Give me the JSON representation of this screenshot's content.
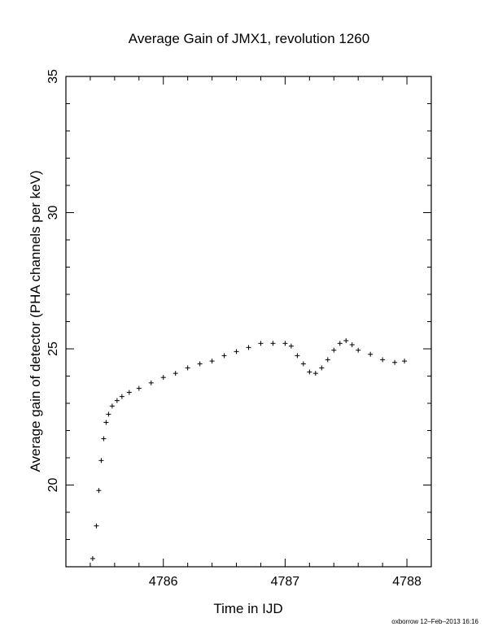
{
  "chart_data": {
    "type": "scatter",
    "title": "Average Gain of JMX1, revolution 1260",
    "xlabel": "Time in IJD",
    "ylabel": "Average gain of detector (PHA channels per keV)",
    "xlim": [
      4785.2,
      4788.2
    ],
    "ylim": [
      17,
      35
    ],
    "xticks": [
      4786,
      4787,
      4788
    ],
    "yticks": [
      20,
      25,
      30,
      35
    ],
    "grid": false,
    "marker": "plus",
    "color": "#000000",
    "series": [
      {
        "x": [
          4785.42,
          4785.45,
          4785.47,
          4785.49,
          4785.51,
          4785.53,
          4785.55,
          4785.58,
          4785.62,
          4785.66,
          4785.72,
          4785.8,
          4785.9,
          4786.0,
          4786.1,
          4786.2,
          4786.3,
          4786.4,
          4786.5,
          4786.6,
          4786.7,
          4786.8,
          4786.9,
          4787.0,
          4787.05,
          4787.1,
          4787.15,
          4787.2,
          4787.25,
          4787.3,
          4787.35,
          4787.4,
          4787.45,
          4787.5,
          4787.55,
          4787.6,
          4787.7,
          4787.8,
          4787.9,
          4787.98
        ],
        "y": [
          17.3,
          18.5,
          19.8,
          20.9,
          21.7,
          22.3,
          22.6,
          22.9,
          23.1,
          23.25,
          23.4,
          23.55,
          23.75,
          23.95,
          24.1,
          24.3,
          24.45,
          24.55,
          24.75,
          24.9,
          25.05,
          25.2,
          25.2,
          25.2,
          25.1,
          24.75,
          24.45,
          24.15,
          24.1,
          24.3,
          24.6,
          24.95,
          25.2,
          25.3,
          25.15,
          24.95,
          24.8,
          24.6,
          24.5,
          24.55
        ]
      }
    ]
  },
  "footer": "oxborrow 12–Feb–2013 16:16"
}
